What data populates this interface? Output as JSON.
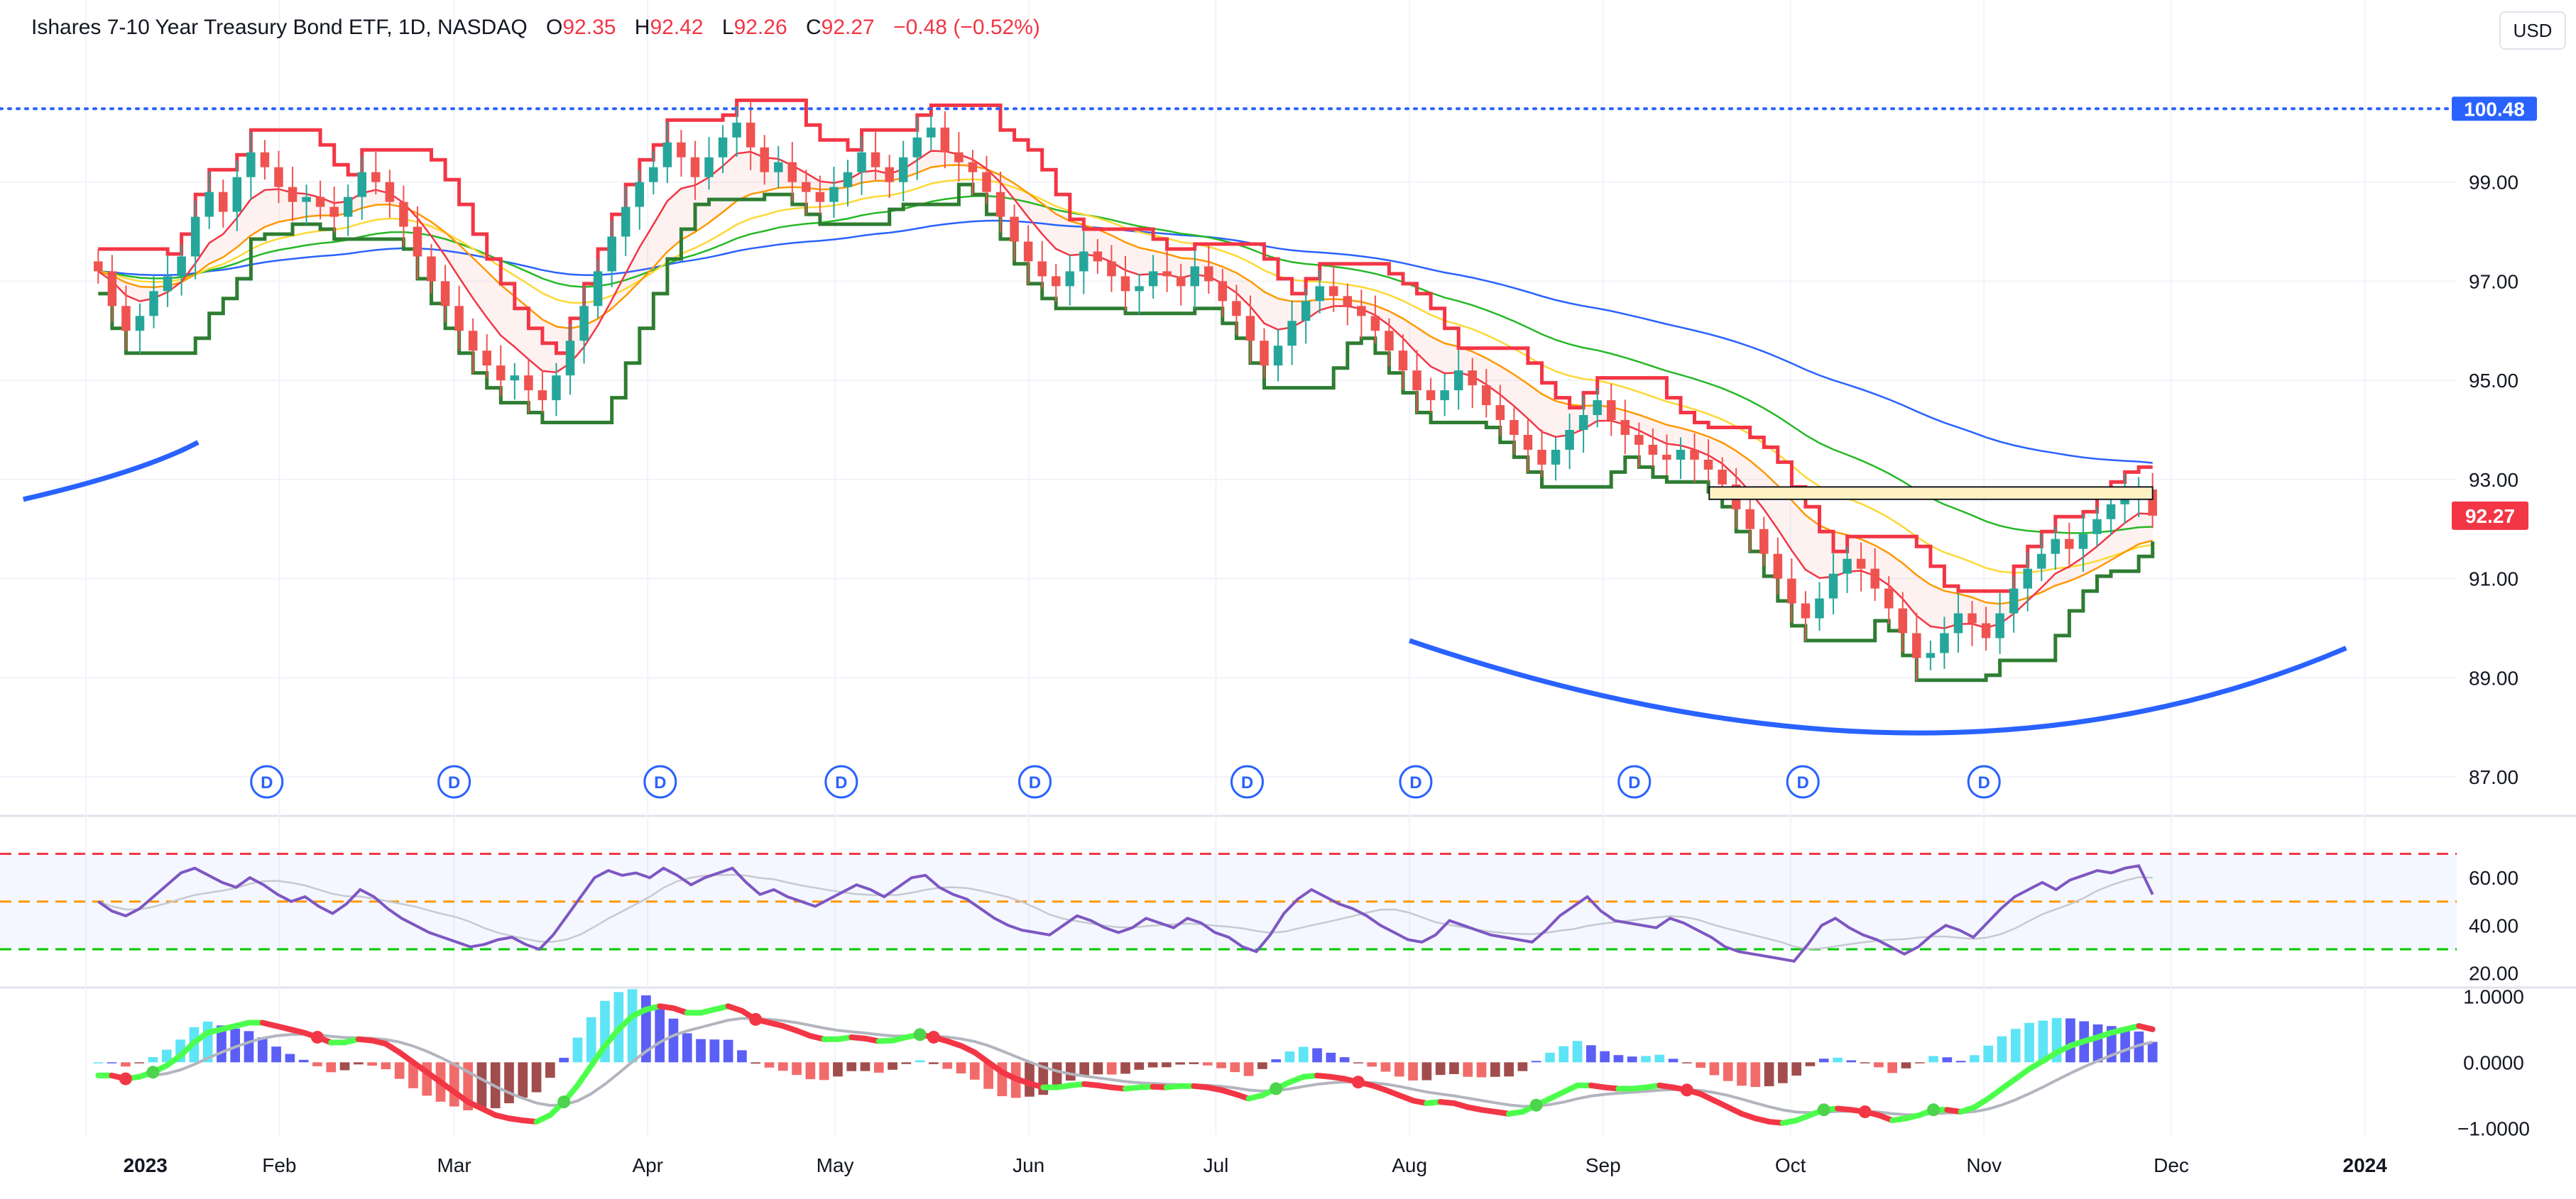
{
  "header": {
    "title": "Ishares 7-10 Year Treasury Bond ETF, 1D, NASDAQ",
    "open_label": "O",
    "open": "92.35",
    "high_label": "H",
    "high": "92.42",
    "low_label": "L",
    "low": "92.26",
    "close_label": "C",
    "close": "92.27",
    "change": "−0.48 (−0.52%)"
  },
  "currency": "USD",
  "colors": {
    "up": "#26a69a",
    "down": "#ef5350",
    "accent": "#2962ff",
    "rsi": "#7e57c2",
    "macd_line": "#4cff4c",
    "signal": "#b2b5be"
  },
  "price_axis": {
    "ticks": [
      "99.00",
      "97.00",
      "95.00",
      "93.00",
      "91.00",
      "89.00",
      "87.00"
    ]
  },
  "price_tags": {
    "top_line": "100.48",
    "last": "92.27"
  },
  "rsi_axis": {
    "ticks": [
      "60.00",
      "40.00",
      "20.00"
    ]
  },
  "macd_axis": {
    "ticks": [
      "1.0000",
      "0.0000",
      "−1.0000"
    ]
  },
  "time_axis": {
    "labels": [
      "2023",
      "Feb",
      "Mar",
      "Apr",
      "May",
      "Jun",
      "Jul",
      "Aug",
      "Sep",
      "Oct",
      "Nov",
      "Dec",
      "2024"
    ],
    "bold": [
      "2023",
      "2024"
    ]
  },
  "dividend_marker": "D",
  "dividend_count": 10,
  "chart_data": [
    {
      "type": "candlestick",
      "title": "Ishares 7-10 Year Treasury Bond ETF, 1D, NASDAQ",
      "ylim": [
        86.5,
        101.6
      ],
      "x_range": [
        "2022-12-21",
        "2024-01-14"
      ],
      "dividends": [
        "2023-01-30",
        "2023-03-01",
        "2023-04-03",
        "2023-05-02",
        "2023-06-02",
        "2023-07-06",
        "2023-08-02",
        "2023-09-06",
        "2023-10-03",
        "2023-11-01"
      ],
      "reference_lines": [
        {
          "value": 100.48,
          "style": "dotted"
        }
      ],
      "resistance_box": {
        "from": "2023-09-18",
        "to": "2023-11-28",
        "low": 92.6,
        "high": 92.85
      },
      "closes": [
        97.2,
        96.5,
        96.0,
        96.3,
        96.8,
        97.1,
        97.5,
        98.3,
        98.8,
        98.4,
        99.1,
        99.6,
        99.3,
        98.9,
        98.6,
        98.7,
        98.5,
        98.3,
        98.7,
        99.2,
        99.0,
        98.6,
        98.1,
        97.5,
        97.0,
        96.5,
        96.0,
        95.6,
        95.3,
        95.0,
        95.1,
        94.8,
        94.6,
        95.1,
        95.8,
        96.5,
        97.2,
        97.9,
        98.5,
        99.0,
        99.3,
        99.8,
        99.5,
        99.1,
        99.5,
        99.9,
        100.2,
        99.7,
        99.2,
        99.4,
        99.0,
        98.8,
        98.6,
        98.9,
        99.2,
        99.6,
        99.3,
        99.0,
        99.5,
        99.9,
        100.1,
        99.6,
        99.4,
        99.2,
        98.8,
        98.3,
        97.8,
        97.4,
        97.1,
        96.9,
        97.2,
        97.6,
        97.4,
        97.1,
        96.8,
        96.9,
        97.2,
        97.1,
        96.9,
        97.3,
        97.0,
        96.6,
        96.3,
        95.8,
        95.3,
        95.7,
        96.2,
        96.6,
        96.9,
        96.7,
        96.5,
        96.3,
        96.0,
        95.6,
        95.2,
        94.8,
        94.6,
        94.8,
        95.2,
        94.9,
        94.5,
        94.2,
        93.9,
        93.6,
        93.3,
        93.6,
        94.0,
        94.3,
        94.6,
        94.2,
        93.9,
        93.7,
        93.5,
        93.4,
        93.6,
        93.4,
        93.2,
        92.9,
        92.4,
        92.0,
        91.5,
        91.0,
        90.5,
        90.2,
        90.6,
        91.1,
        91.4,
        91.2,
        90.8,
        90.4,
        89.9,
        89.4,
        89.5,
        89.9,
        90.3,
        90.1,
        89.8,
        90.3,
        90.8,
        91.2,
        91.5,
        91.8,
        91.6,
        91.9,
        92.2,
        92.5,
        92.7,
        92.8,
        92.27
      ]
    },
    {
      "type": "line",
      "title": "RSI",
      "ylim": [
        16,
        77
      ],
      "bands": [
        {
          "value": 70,
          "color": "#f23645"
        },
        {
          "value": 50,
          "color": "#ff9800"
        },
        {
          "value": 30,
          "color": "#00c800"
        }
      ],
      "values": [
        50,
        46,
        44,
        47,
        52,
        57,
        62,
        64,
        61,
        58,
        56,
        60,
        57,
        53,
        50,
        52,
        48,
        45,
        49,
        55,
        52,
        47,
        43,
        40,
        37,
        35,
        33,
        31,
        32,
        34,
        35,
        32,
        30,
        36,
        44,
        52,
        60,
        63,
        61,
        62,
        60,
        64,
        61,
        57,
        60,
        62,
        64,
        58,
        53,
        55,
        52,
        50,
        48,
        51,
        54,
        57,
        55,
        52,
        56,
        60,
        61,
        56,
        53,
        51,
        47,
        43,
        40,
        38,
        37,
        36,
        40,
        44,
        42,
        39,
        37,
        39,
        43,
        41,
        39,
        43,
        41,
        37,
        35,
        31,
        29,
        36,
        45,
        51,
        55,
        52,
        49,
        47,
        44,
        40,
        37,
        34,
        33,
        36,
        42,
        40,
        38,
        36,
        35,
        34,
        33,
        38,
        44,
        48,
        52,
        46,
        42,
        41,
        40,
        39,
        43,
        41,
        38,
        35,
        31,
        29,
        28,
        27,
        26,
        25,
        32,
        40,
        43,
        39,
        36,
        34,
        31,
        28,
        31,
        36,
        40,
        38,
        35,
        41,
        47,
        52,
        55,
        58,
        55,
        59,
        61,
        63,
        62,
        64,
        65,
        53
      ]
    },
    {
      "type": "bar+line",
      "title": "MACD",
      "ylim": [
        -1.05,
        1.1
      ],
      "macd": [
        -0.2,
        -0.2,
        -0.25,
        -0.22,
        -0.15,
        -0.05,
        0.1,
        0.3,
        0.45,
        0.5,
        0.55,
        0.6,
        0.6,
        0.55,
        0.5,
        0.45,
        0.38,
        0.3,
        0.3,
        0.35,
        0.33,
        0.28,
        0.15,
        0.0,
        -0.15,
        -0.3,
        -0.45,
        -0.6,
        -0.7,
        -0.8,
        -0.85,
        -0.88,
        -0.9,
        -0.8,
        -0.6,
        -0.35,
        -0.05,
        0.25,
        0.5,
        0.7,
        0.8,
        0.85,
        0.82,
        0.75,
        0.75,
        0.8,
        0.85,
        0.78,
        0.65,
        0.6,
        0.55,
        0.48,
        0.4,
        0.35,
        0.35,
        0.38,
        0.36,
        0.32,
        0.33,
        0.38,
        0.42,
        0.38,
        0.32,
        0.25,
        0.15,
        0.0,
        -0.15,
        -0.25,
        -0.32,
        -0.38,
        -0.38,
        -0.35,
        -0.33,
        -0.35,
        -0.38,
        -0.4,
        -0.38,
        -0.37,
        -0.38,
        -0.36,
        -0.36,
        -0.38,
        -0.42,
        -0.48,
        -0.55,
        -0.5,
        -0.4,
        -0.3,
        -0.22,
        -0.2,
        -0.22,
        -0.25,
        -0.3,
        -0.35,
        -0.42,
        -0.5,
        -0.58,
        -0.62,
        -0.6,
        -0.62,
        -0.68,
        -0.72,
        -0.75,
        -0.78,
        -0.75,
        -0.65,
        -0.55,
        -0.45,
        -0.35,
        -0.35,
        -0.38,
        -0.4,
        -0.4,
        -0.38,
        -0.35,
        -0.38,
        -0.42,
        -0.48,
        -0.58,
        -0.68,
        -0.78,
        -0.85,
        -0.9,
        -0.92,
        -0.88,
        -0.8,
        -0.72,
        -0.7,
        -0.72,
        -0.75,
        -0.8,
        -0.88,
        -0.85,
        -0.8,
        -0.72,
        -0.72,
        -0.75,
        -0.68,
        -0.55,
        -0.4,
        -0.25,
        -0.1,
        0.02,
        0.15,
        0.25,
        0.32,
        0.38,
        0.45,
        0.5,
        0.55,
        0.5
      ]
    }
  ]
}
